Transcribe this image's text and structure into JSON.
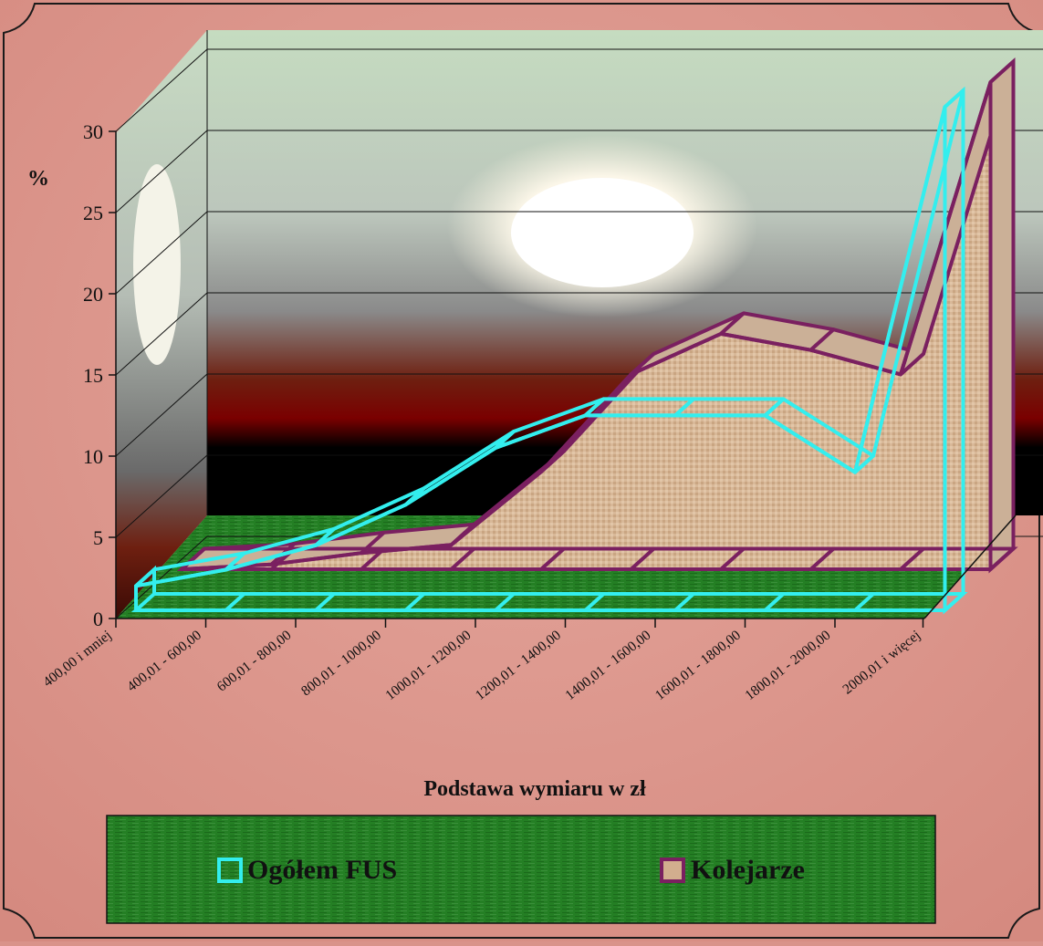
{
  "chart_data": {
    "type": "area",
    "ylabel": "%",
    "xlabel": "Podstawa wymiaru w zł",
    "ylim": [
      0,
      30
    ],
    "yticks": [
      "0",
      "5",
      "10",
      "15",
      "20",
      "25",
      "30"
    ],
    "categories": [
      "400,00 i mniej",
      "400,01 - 600,00",
      "600,01 - 800,00",
      "800,01 - 1000,00",
      "1000,01 - 1200,00",
      "1200,01 - 1400,00",
      "1400,01 - 1600,00",
      "1600,01 - 1800,00",
      "1800,01 - 2000,00",
      "2000,01 i więcej"
    ],
    "series": [
      {
        "name": "Ogółem  FUS",
        "values": [
          1.5,
          2.5,
          4.0,
          6.5,
          10.0,
          12.0,
          12.0,
          12.0,
          8.5,
          31.0
        ]
      },
      {
        "name": "Kolejarze",
        "values": [
          0.0,
          0.3,
          1.0,
          1.5,
          6.0,
          12.0,
          14.5,
          13.5,
          12.0,
          30.0
        ]
      }
    ],
    "legend_position": "bottom",
    "grid": true,
    "colors": {
      "fus": "#33eeee",
      "kolejarze": "#7a2060",
      "kolejarze_fill": "#d2ae8e",
      "floor": "#1f7a1f",
      "page_background": "#d9938a",
      "axis": "#111111"
    }
  }
}
